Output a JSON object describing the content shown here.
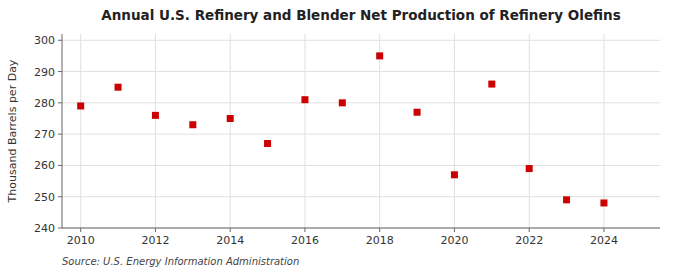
{
  "chart_data": {
    "type": "scatter",
    "title": "Annual U.S. Refinery and Blender Net Production of Refinery Olefins",
    "ylabel": "Thousand Barrels per Day",
    "source": "Source: U.S. Energy Information Administration",
    "x": [
      2010,
      2011,
      2012,
      2013,
      2014,
      2015,
      2016,
      2017,
      2018,
      2019,
      2020,
      2021,
      2022,
      2023,
      2024
    ],
    "values": [
      279,
      285,
      276,
      273,
      275,
      267,
      281,
      280,
      295,
      277,
      257,
      286,
      259,
      249,
      248
    ],
    "color": "#cc0000",
    "marker": "square",
    "xlim": [
      2009.5,
      2025.5
    ],
    "xticks": [
      2010,
      2012,
      2014,
      2016,
      2018,
      2020,
      2022,
      2024
    ],
    "ylim": [
      240,
      302
    ],
    "yticks": [
      240,
      250,
      260,
      270,
      280,
      290,
      300
    ],
    "grid": true
  }
}
